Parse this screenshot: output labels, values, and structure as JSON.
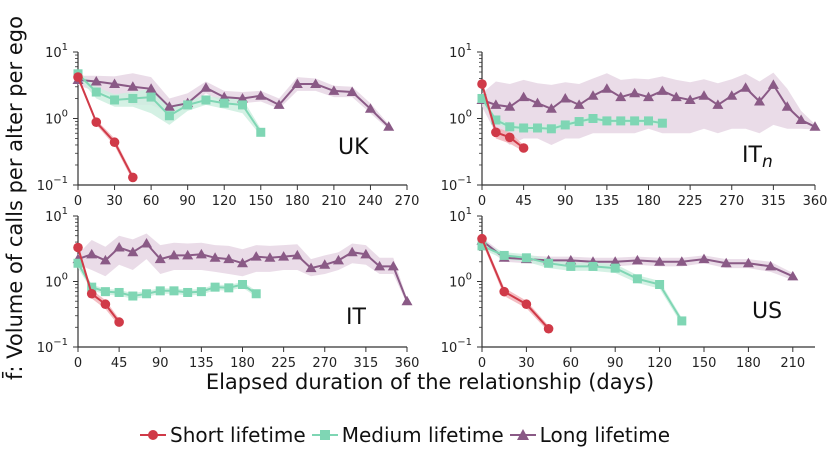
{
  "ylabel": "f̄: Volume of calls per alter per ego",
  "xlabel": "Elapsed duration of the relationship (days)",
  "colors": {
    "short": "#d03a48",
    "medium": "#7fd6b4",
    "long": "#8a5a86",
    "short_band": "#f2b3b8",
    "medium_band": "#ccefdf",
    "long_band": "#e6d6e4"
  },
  "legend": [
    {
      "key": "short",
      "label": "Short lifetime",
      "marker": "circle"
    },
    {
      "key": "medium",
      "label": "Medium lifetime",
      "marker": "square"
    },
    {
      "key": "long",
      "label": "Long lifetime",
      "marker": "triangle"
    }
  ],
  "chart_data": [
    {
      "type": "line",
      "panel_label": "UK",
      "yscale": "log",
      "xlim": [
        0,
        270
      ],
      "ylim": [
        0.1,
        10
      ],
      "xticks": [
        0,
        30,
        60,
        90,
        120,
        150,
        180,
        210,
        240,
        270
      ],
      "yticks": [
        {
          "v": 0.1,
          "b": "10",
          "e": "−1"
        },
        {
          "v": 1,
          "b": "10",
          "e": "0"
        },
        {
          "v": 10,
          "b": "10",
          "e": "1"
        }
      ],
      "series": [
        {
          "key": "short",
          "x": [
            0,
            15,
            30,
            45
          ],
          "y": [
            4.2,
            0.88,
            0.44,
            0.13
          ],
          "lo": [
            3.8,
            0.8,
            0.39,
            0.115
          ],
          "hi": [
            4.6,
            0.96,
            0.5,
            0.145
          ]
        },
        {
          "key": "medium",
          "x": [
            0,
            15,
            30,
            45,
            60,
            75,
            90,
            105,
            120,
            135,
            150
          ],
          "y": [
            4.7,
            2.5,
            1.9,
            2.0,
            2.1,
            1.1,
            1.6,
            1.9,
            1.7,
            1.6,
            0.62
          ],
          "lo": [
            4.2,
            2.0,
            1.5,
            1.5,
            1.2,
            0.8,
            1.3,
            1.6,
            1.4,
            1.2,
            0.55
          ],
          "hi": [
            5.2,
            3.0,
            2.3,
            2.5,
            2.8,
            1.5,
            1.9,
            2.2,
            2.0,
            2.0,
            0.7
          ]
        },
        {
          "key": "long",
          "x": [
            0,
            15,
            30,
            45,
            60,
            75,
            90,
            105,
            120,
            135,
            150,
            165,
            180,
            195,
            210,
            225,
            240,
            255
          ],
          "y": [
            3.8,
            3.6,
            3.3,
            3.0,
            2.8,
            1.5,
            1.7,
            2.9,
            2.1,
            2.0,
            2.2,
            1.6,
            3.3,
            3.3,
            2.6,
            2.5,
            1.4,
            0.75
          ],
          "lo": [
            3.2,
            2.5,
            2.2,
            1.6,
            1.6,
            1.2,
            1.4,
            2.4,
            1.7,
            1.7,
            1.8,
            1.4,
            2.6,
            2.6,
            2.1,
            2.1,
            1.2,
            0.68
          ],
          "hi": [
            4.4,
            4.4,
            4.3,
            4.8,
            4.2,
            2.0,
            2.4,
            3.6,
            2.6,
            2.5,
            2.6,
            2.0,
            4.2,
            4.0,
            3.1,
            3.0,
            1.7,
            0.82
          ]
        }
      ]
    },
    {
      "type": "line",
      "panel_label": "IT",
      "panel_sub": "n",
      "yscale": "log",
      "xlim": [
        0,
        360
      ],
      "ylim": [
        0.1,
        10
      ],
      "xticks": [
        0,
        45,
        90,
        135,
        180,
        225,
        270,
        315,
        360
      ],
      "yticks": [
        {
          "v": 0.1,
          "b": "10",
          "e": "−1"
        },
        {
          "v": 1,
          "b": "10",
          "e": "0"
        },
        {
          "v": 10,
          "b": "10",
          "e": "1"
        }
      ],
      "series": [
        {
          "key": "short",
          "x": [
            0,
            15,
            30,
            45
          ],
          "y": [
            3.3,
            0.62,
            0.52,
            0.36
          ],
          "lo": [
            2.9,
            0.5,
            0.42,
            0.32
          ],
          "hi": [
            3.7,
            0.74,
            0.62,
            0.4
          ]
        },
        {
          "key": "medium",
          "x": [
            0,
            15,
            30,
            45,
            60,
            75,
            90,
            105,
            120,
            135,
            150,
            165,
            180,
            195
          ],
          "y": [
            2.0,
            0.95,
            0.75,
            0.72,
            0.72,
            0.7,
            0.8,
            0.9,
            1.0,
            0.92,
            0.92,
            0.92,
            0.92,
            0.85
          ],
          "lo": [
            1.7,
            0.85,
            0.67,
            0.64,
            0.64,
            0.63,
            0.72,
            0.82,
            0.9,
            0.84,
            0.84,
            0.84,
            0.84,
            0.78
          ],
          "hi": [
            2.3,
            1.05,
            0.83,
            0.8,
            0.8,
            0.78,
            0.88,
            0.98,
            1.1,
            1.0,
            1.0,
            1.0,
            1.0,
            0.92
          ]
        },
        {
          "key": "long",
          "x": [
            0,
            15,
            30,
            45,
            60,
            75,
            90,
            105,
            120,
            135,
            150,
            165,
            180,
            195,
            210,
            225,
            240,
            255,
            270,
            285,
            300,
            315,
            330,
            345,
            360
          ],
          "y": [
            1.9,
            1.6,
            1.5,
            2.1,
            1.7,
            1.4,
            2.0,
            1.6,
            2.2,
            2.8,
            2.1,
            2.4,
            2.1,
            2.6,
            2.1,
            1.9,
            2.2,
            1.6,
            2.2,
            2.9,
            1.8,
            3.2,
            1.5,
            0.95,
            0.75
          ],
          "lo": [
            1.5,
            0.6,
            0.4,
            0.5,
            0.5,
            0.4,
            0.5,
            0.5,
            0.6,
            0.6,
            0.6,
            0.6,
            0.7,
            0.6,
            0.6,
            0.6,
            0.7,
            0.6,
            0.7,
            0.7,
            0.6,
            0.8,
            0.7,
            0.7,
            0.68
          ],
          "hi": [
            2.4,
            3.6,
            3.3,
            3.8,
            3.4,
            3.2,
            3.5,
            3.3,
            4.0,
            4.8,
            3.8,
            4.0,
            3.9,
            4.3,
            3.8,
            3.5,
            3.9,
            3.4,
            3.9,
            4.7,
            3.6,
            4.9,
            2.8,
            1.3,
            0.82
          ]
        }
      ]
    },
    {
      "type": "line",
      "panel_label": "IT",
      "yscale": "log",
      "xlim": [
        0,
        360
      ],
      "ylim": [
        0.1,
        10
      ],
      "xticks": [
        0,
        45,
        90,
        135,
        180,
        225,
        270,
        315,
        360
      ],
      "yticks": [
        {
          "v": 0.1,
          "b": "10",
          "e": "−1"
        },
        {
          "v": 1,
          "b": "10",
          "e": "0"
        },
        {
          "v": 10,
          "b": "10",
          "e": "1"
        }
      ],
      "series": [
        {
          "key": "short",
          "x": [
            0,
            15,
            30,
            45
          ],
          "y": [
            3.3,
            0.65,
            0.45,
            0.24
          ],
          "lo": [
            2.9,
            0.55,
            0.38,
            0.21
          ],
          "hi": [
            3.7,
            0.75,
            0.52,
            0.27
          ]
        },
        {
          "key": "medium",
          "x": [
            0,
            15,
            30,
            45,
            60,
            75,
            90,
            105,
            120,
            135,
            150,
            165,
            180,
            195
          ],
          "y": [
            1.9,
            0.82,
            0.7,
            0.68,
            0.6,
            0.65,
            0.72,
            0.72,
            0.68,
            0.7,
            0.82,
            0.8,
            0.9,
            0.65
          ],
          "lo": [
            1.6,
            0.74,
            0.63,
            0.61,
            0.54,
            0.58,
            0.65,
            0.65,
            0.61,
            0.63,
            0.74,
            0.72,
            0.81,
            0.58
          ],
          "hi": [
            2.2,
            0.9,
            0.77,
            0.75,
            0.66,
            0.72,
            0.79,
            0.79,
            0.75,
            0.77,
            0.9,
            0.88,
            0.99,
            0.72
          ]
        },
        {
          "key": "long",
          "x": [
            0,
            15,
            30,
            45,
            60,
            75,
            90,
            105,
            120,
            135,
            150,
            165,
            180,
            195,
            210,
            225,
            240,
            255,
            270,
            285,
            300,
            315,
            330,
            345,
            360
          ],
          "y": [
            2.2,
            2.6,
            2.1,
            3.3,
            2.8,
            3.8,
            2.2,
            2.5,
            2.5,
            2.6,
            2.3,
            2.2,
            1.9,
            2.4,
            2.3,
            2.4,
            2.5,
            1.6,
            1.8,
            2.1,
            2.8,
            2.6,
            1.7,
            1.7,
            0.5
          ],
          "lo": [
            1.8,
            1.5,
            1.2,
            1.8,
            1.5,
            2.2,
            1.3,
            1.5,
            1.5,
            1.5,
            1.4,
            1.3,
            1.2,
            1.4,
            1.4,
            1.5,
            1.5,
            1.2,
            1.3,
            1.5,
            1.9,
            1.8,
            1.3,
            1.3,
            0.45
          ],
          "hi": [
            2.6,
            4.3,
            3.4,
            5.0,
            4.4,
            5.4,
            3.6,
            3.9,
            3.8,
            3.9,
            3.6,
            3.5,
            3.1,
            3.6,
            3.5,
            3.6,
            3.7,
            2.2,
            2.5,
            2.8,
            3.8,
            3.6,
            2.3,
            2.3,
            0.55
          ]
        }
      ]
    },
    {
      "type": "line",
      "panel_label": "US",
      "yscale": "log",
      "xlim": [
        0,
        225
      ],
      "ylim": [
        0.1,
        10
      ],
      "xticks": [
        0,
        30,
        60,
        90,
        120,
        150,
        180,
        210
      ],
      "yticks": [
        {
          "v": 0.1,
          "b": "10",
          "e": "−1"
        },
        {
          "v": 1,
          "b": "10",
          "e": "0"
        },
        {
          "v": 10,
          "b": "10",
          "e": "1"
        }
      ],
      "series": [
        {
          "key": "short",
          "x": [
            0,
            15,
            30,
            45
          ],
          "y": [
            4.5,
            0.7,
            0.45,
            0.19
          ],
          "lo": [
            4.0,
            0.6,
            0.39,
            0.17
          ],
          "hi": [
            5.0,
            0.8,
            0.51,
            0.21
          ]
        },
        {
          "key": "medium",
          "x": [
            0,
            15,
            30,
            45,
            60,
            75,
            90,
            105,
            120,
            135
          ],
          "y": [
            3.5,
            2.5,
            2.3,
            1.9,
            1.7,
            1.7,
            1.6,
            1.1,
            0.9,
            0.25
          ],
          "lo": [
            3.1,
            2.2,
            2.0,
            1.6,
            1.45,
            1.45,
            1.35,
            0.95,
            0.78,
            0.22
          ],
          "hi": [
            3.9,
            2.8,
            2.6,
            2.2,
            1.95,
            1.95,
            1.85,
            1.25,
            1.02,
            0.28
          ]
        },
        {
          "key": "long",
          "x": [
            0,
            15,
            30,
            45,
            60,
            75,
            90,
            105,
            120,
            135,
            150,
            165,
            180,
            195,
            210
          ],
          "y": [
            4.2,
            2.3,
            2.2,
            2.1,
            2.1,
            2.0,
            2.0,
            2.1,
            2.0,
            2.0,
            2.2,
            1.9,
            1.9,
            1.7,
            1.2
          ],
          "lo": [
            3.7,
            2.0,
            1.9,
            1.8,
            1.8,
            1.7,
            1.7,
            1.8,
            1.7,
            1.7,
            1.9,
            1.6,
            1.6,
            1.4,
            1.05
          ],
          "hi": [
            4.7,
            2.6,
            2.5,
            2.4,
            2.4,
            2.3,
            2.3,
            2.4,
            2.3,
            2.3,
            2.5,
            2.2,
            2.2,
            2.0,
            1.35
          ]
        }
      ]
    }
  ]
}
